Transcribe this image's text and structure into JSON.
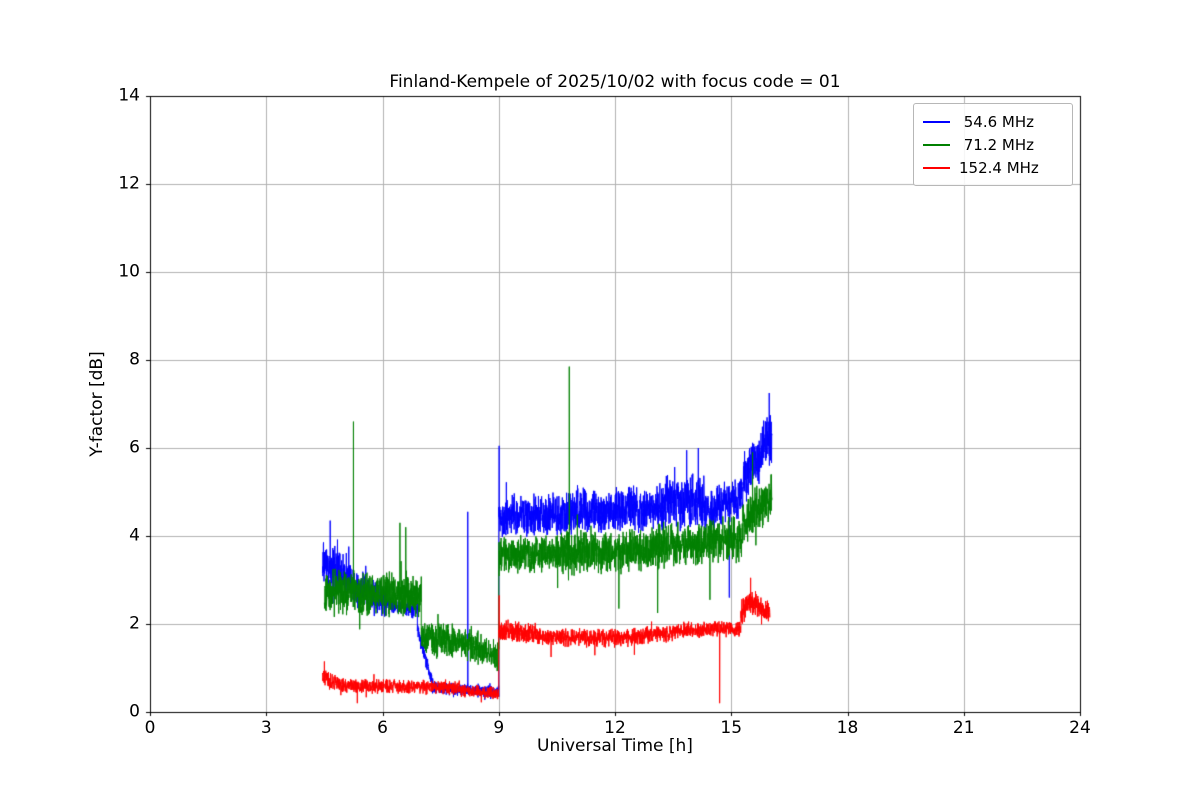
{
  "chart_data": {
    "type": "line",
    "title": "Finland-Kempele of 2025/10/02 with focus code = 01",
    "xlabel": "Universal Time [h]",
    "ylabel": "Y-factor [dB]",
    "xlim": [
      0,
      24
    ],
    "ylim": [
      0,
      14
    ],
    "xticks": [
      0,
      3,
      6,
      9,
      12,
      15,
      18,
      21,
      24
    ],
    "yticks": [
      0,
      2,
      4,
      6,
      8,
      10,
      12,
      14
    ],
    "grid": true,
    "grid_color": "#b0b0b0",
    "legend_position": "upper right",
    "sample_step_h": 0.004,
    "series": [
      {
        "name": " 54.6 MHz",
        "color": "#0000ff",
        "segments": [
          [
            4.45,
            5.2,
            3.3,
            3.0,
            0.45
          ],
          [
            5.2,
            6.1,
            2.9,
            2.5,
            0.32
          ],
          [
            6.1,
            6.9,
            2.45,
            2.3,
            0.15
          ],
          [
            6.9,
            7.3,
            1.9,
            0.6,
            0.18
          ],
          [
            7.3,
            9.0,
            0.55,
            0.45,
            0.12
          ],
          [
            9.0,
            11.0,
            4.45,
            4.5,
            0.4
          ],
          [
            11.0,
            13.3,
            4.55,
            4.65,
            0.42
          ],
          [
            13.3,
            14.3,
            4.8,
            4.8,
            0.5
          ],
          [
            14.3,
            15.3,
            4.6,
            4.9,
            0.38
          ],
          [
            15.3,
            16.05,
            5.2,
            6.3,
            0.48
          ]
        ],
        "spikes": [
          [
            4.65,
            4.35
          ],
          [
            8.2,
            4.55
          ],
          [
            9.01,
            6.05
          ],
          [
            13.85,
            5.95
          ],
          [
            14.15,
            6.0
          ],
          [
            14.95,
            2.6
          ],
          [
            15.98,
            7.25
          ]
        ]
      },
      {
        "name": " 71.2 MHz",
        "color": "#008000",
        "segments": [
          [
            4.5,
            7.0,
            2.75,
            2.65,
            0.4
          ],
          [
            7.0,
            8.3,
            1.7,
            1.55,
            0.33
          ],
          [
            8.3,
            9.0,
            1.5,
            1.25,
            0.28
          ],
          [
            9.0,
            10.5,
            3.55,
            3.6,
            0.35
          ],
          [
            10.5,
            13.0,
            3.6,
            3.7,
            0.4
          ],
          [
            13.0,
            15.3,
            3.75,
            3.95,
            0.4
          ],
          [
            15.3,
            16.05,
            4.3,
            4.9,
            0.42
          ]
        ],
        "spikes": [
          [
            5.25,
            6.6
          ],
          [
            6.45,
            4.3
          ],
          [
            6.6,
            4.2
          ],
          [
            10.82,
            7.85
          ],
          [
            12.1,
            2.35
          ],
          [
            13.1,
            2.25
          ],
          [
            14.45,
            2.55
          ],
          [
            15.55,
            5.9
          ]
        ]
      },
      {
        "name": "152.4 MHz",
        "color": "#ff0000",
        "segments": [
          [
            4.45,
            5.0,
            0.75,
            0.6,
            0.18
          ],
          [
            5.0,
            8.0,
            0.6,
            0.55,
            0.13
          ],
          [
            8.0,
            9.0,
            0.5,
            0.42,
            0.12
          ],
          [
            9.0,
            10.0,
            1.85,
            1.78,
            0.2
          ],
          [
            10.0,
            12.0,
            1.72,
            1.68,
            0.17
          ],
          [
            12.0,
            13.5,
            1.68,
            1.8,
            0.17
          ],
          [
            13.5,
            15.25,
            1.85,
            1.9,
            0.15
          ],
          [
            15.25,
            15.65,
            2.3,
            2.5,
            0.28
          ],
          [
            15.65,
            16.0,
            2.4,
            2.3,
            0.2
          ]
        ],
        "spikes": [
          [
            4.5,
            1.15
          ],
          [
            5.35,
            0.2
          ],
          [
            8.55,
            0.22
          ],
          [
            9.01,
            2.65
          ],
          [
            10.35,
            1.25
          ],
          [
            12.5,
            1.3
          ],
          [
            14.7,
            0.2
          ],
          [
            15.5,
            3.05
          ]
        ]
      }
    ]
  }
}
